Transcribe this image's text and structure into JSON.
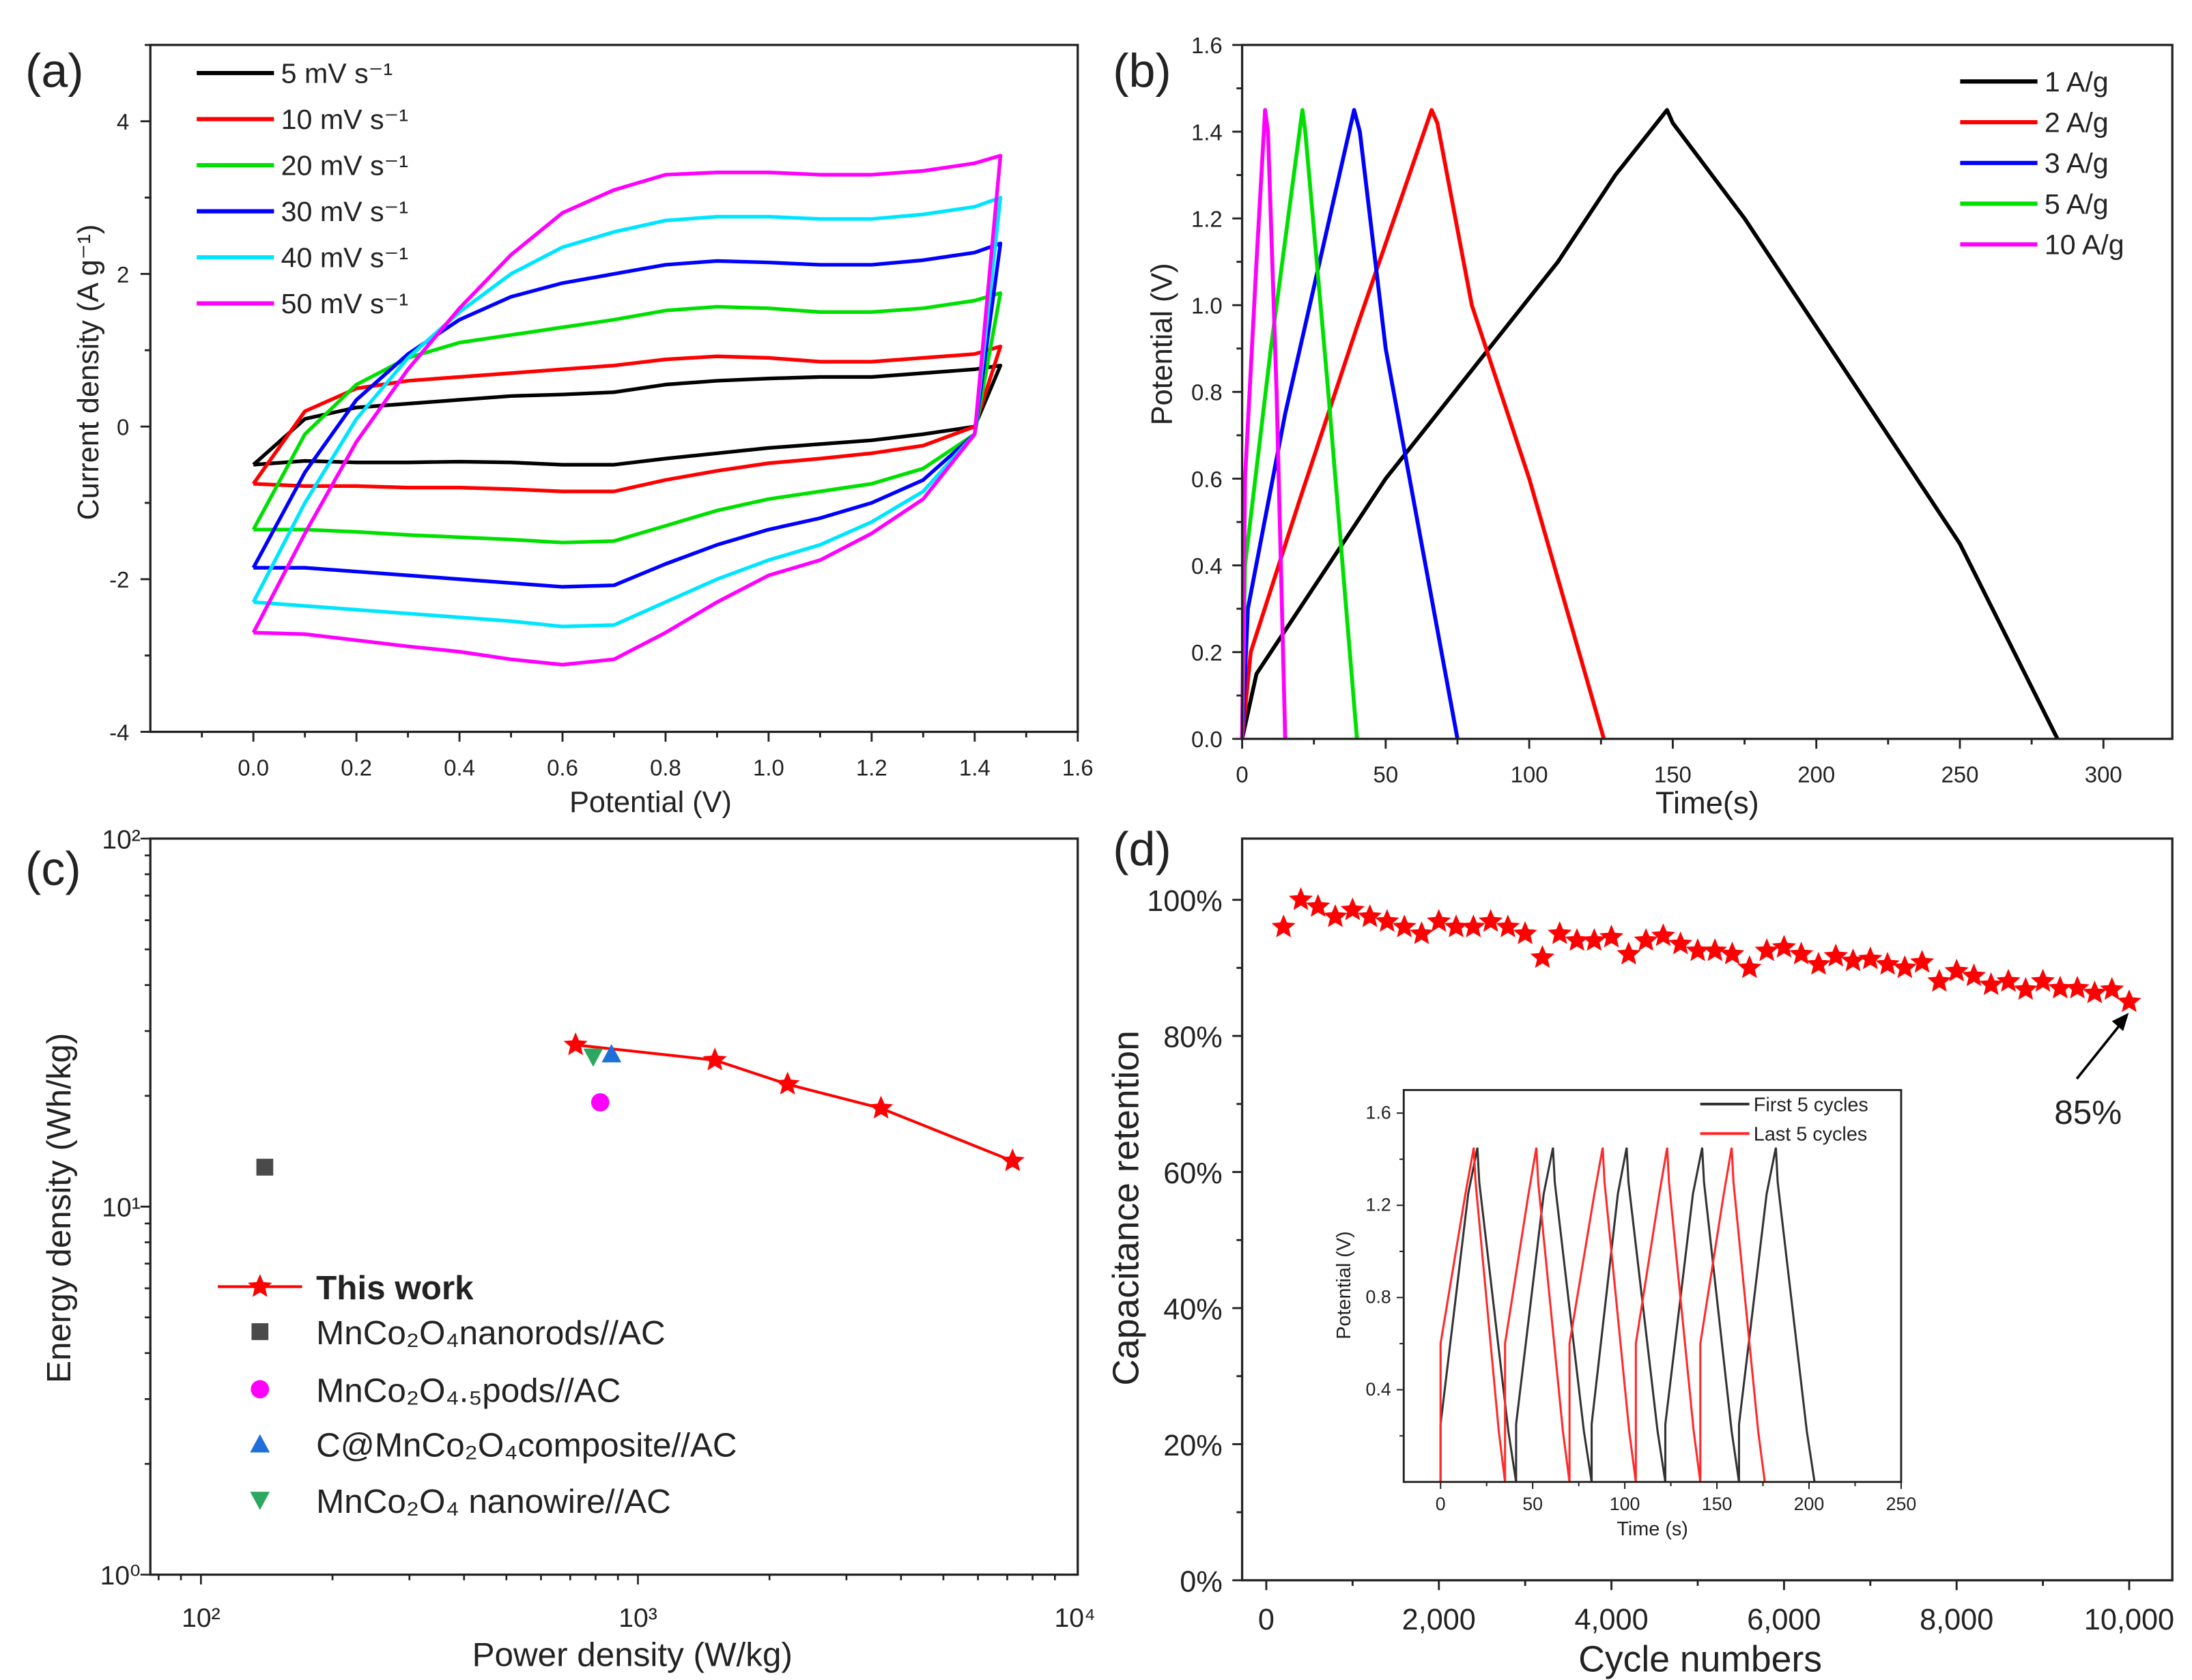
{
  "chart_data": [
    {
      "panel": "(a)",
      "type": "line",
      "xlabel": "Potential (V)",
      "ylabel": "Current density (A g⁻¹)",
      "xlim": [
        -0.2,
        1.6
      ],
      "ylim": [
        -4,
        5
      ],
      "xticks": [
        "0.0",
        "0.2",
        "0.4",
        "0.6",
        "0.8",
        "1.0",
        "1.2",
        "1.4",
        "1.6"
      ],
      "yticks": [
        "-4",
        "-2",
        "0",
        "2",
        "4"
      ],
      "x": [
        0,
        0.1,
        0.2,
        0.3,
        0.4,
        0.5,
        0.6,
        0.7,
        0.8,
        0.9,
        1.0,
        1.1,
        1.2,
        1.3,
        1.4,
        1.45
      ],
      "series": [
        {
          "name": "5 mV s⁻¹",
          "color": "#000000",
          "upper": [
            -0.5,
            0.1,
            0.25,
            0.3,
            0.35,
            0.4,
            0.42,
            0.45,
            0.55,
            0.6,
            0.63,
            0.65,
            0.65,
            0.7,
            0.75,
            0.8
          ],
          "lower": [
            -0.5,
            -0.45,
            -0.47,
            -0.47,
            -0.46,
            -0.47,
            -0.5,
            -0.5,
            -0.42,
            -0.35,
            -0.28,
            -0.23,
            -0.18,
            -0.1,
            0.0,
            0.8
          ]
        },
        {
          "name": "10 mV s⁻¹",
          "color": "#ff0000",
          "upper": [
            -0.75,
            0.2,
            0.5,
            0.6,
            0.65,
            0.7,
            0.75,
            0.8,
            0.88,
            0.92,
            0.9,
            0.85,
            0.85,
            0.9,
            0.95,
            1.05
          ],
          "lower": [
            -0.75,
            -0.78,
            -0.78,
            -0.8,
            -0.8,
            -0.82,
            -0.85,
            -0.85,
            -0.7,
            -0.58,
            -0.48,
            -0.42,
            -0.35,
            -0.25,
            0.0,
            1.05
          ]
        },
        {
          "name": "20 mV s⁻¹",
          "color": "#00e000",
          "upper": [
            -1.35,
            -0.1,
            0.55,
            0.9,
            1.1,
            1.2,
            1.3,
            1.4,
            1.52,
            1.57,
            1.55,
            1.5,
            1.5,
            1.55,
            1.65,
            1.75
          ],
          "lower": [
            -1.35,
            -1.35,
            -1.38,
            -1.42,
            -1.45,
            -1.48,
            -1.52,
            -1.5,
            -1.3,
            -1.1,
            -0.95,
            -0.85,
            -0.75,
            -0.55,
            -0.1,
            1.75
          ]
        },
        {
          "name": "30 mV s⁻¹",
          "color": "#0000ff",
          "upper": [
            -1.85,
            -0.6,
            0.35,
            0.95,
            1.4,
            1.7,
            1.88,
            2.0,
            2.12,
            2.17,
            2.15,
            2.12,
            2.12,
            2.18,
            2.28,
            2.4
          ],
          "lower": [
            -1.85,
            -1.85,
            -1.9,
            -1.95,
            -2.0,
            -2.05,
            -2.1,
            -2.08,
            -1.8,
            -1.55,
            -1.35,
            -1.2,
            -1.0,
            -0.7,
            -0.1,
            2.4
          ]
        },
        {
          "name": "40 mV s⁻¹",
          "color": "#00e5ff",
          "upper": [
            -2.3,
            -1.0,
            0.1,
            0.9,
            1.5,
            2.0,
            2.35,
            2.55,
            2.7,
            2.75,
            2.75,
            2.72,
            2.72,
            2.78,
            2.88,
            3.0
          ],
          "lower": [
            -2.3,
            -2.35,
            -2.4,
            -2.45,
            -2.5,
            -2.55,
            -2.62,
            -2.6,
            -2.3,
            -2.0,
            -1.75,
            -1.55,
            -1.25,
            -0.85,
            -0.1,
            3.0
          ]
        },
        {
          "name": "50 mV s⁻¹",
          "color": "#ff00ff",
          "upper": [
            -2.7,
            -1.4,
            -0.2,
            0.75,
            1.55,
            2.25,
            2.8,
            3.1,
            3.3,
            3.33,
            3.33,
            3.3,
            3.3,
            3.35,
            3.45,
            3.55
          ],
          "lower": [
            -2.7,
            -2.72,
            -2.8,
            -2.88,
            -2.95,
            -3.05,
            -3.12,
            -3.05,
            -2.7,
            -2.3,
            -1.95,
            -1.75,
            -1.4,
            -0.95,
            -0.1,
            3.55
          ]
        }
      ]
    },
    {
      "panel": "(b)",
      "type": "line",
      "xlabel": "Time(s)",
      "ylabel": "Potential (V)",
      "xlim": [
        0,
        324
      ],
      "ylim": [
        0,
        1.6
      ],
      "xticks": [
        "0",
        "50",
        "100",
        "150",
        "200",
        "250",
        "300"
      ],
      "yticks": [
        "0.0",
        "0.2",
        "0.4",
        "0.6",
        "0.8",
        "1.0",
        "1.2",
        "1.4",
        "1.6"
      ],
      "series": [
        {
          "name": "1 A/g",
          "color": "#000000",
          "points": [
            [
              0,
              0
            ],
            [
              5,
              0.15
            ],
            [
              20,
              0.3
            ],
            [
              50,
              0.6
            ],
            [
              80,
              0.85
            ],
            [
              110,
              1.1
            ],
            [
              130,
              1.3
            ],
            [
              148,
              1.45
            ],
            [
              150,
              1.42
            ],
            [
              175,
              1.2
            ],
            [
              200,
              0.95
            ],
            [
              230,
              0.65
            ],
            [
              250,
              0.45
            ],
            [
              284,
              0
            ]
          ]
        },
        {
          "name": "2 A/g",
          "color": "#ff0000",
          "points": [
            [
              0,
              0
            ],
            [
              3,
              0.2
            ],
            [
              20,
              0.55
            ],
            [
              40,
              0.95
            ],
            [
              66,
              1.45
            ],
            [
              68,
              1.42
            ],
            [
              80,
              1.0
            ],
            [
              100,
              0.6
            ],
            [
              126,
              0
            ]
          ]
        },
        {
          "name": "3 A/g",
          "color": "#0000ff",
          "points": [
            [
              0,
              0
            ],
            [
              2,
              0.3
            ],
            [
              15,
              0.75
            ],
            [
              39,
              1.45
            ],
            [
              41,
              1.4
            ],
            [
              50,
              0.9
            ],
            [
              75,
              0
            ]
          ]
        },
        {
          "name": "5 A/g",
          "color": "#00e000",
          "points": [
            [
              0,
              0
            ],
            [
              1,
              0.4
            ],
            [
              10,
              0.9
            ],
            [
              21,
              1.45
            ],
            [
              22,
              1.4
            ],
            [
              30,
              0.8
            ],
            [
              40,
              0
            ]
          ]
        },
        {
          "name": "10 A/g",
          "color": "#ff00ff",
          "points": [
            [
              0,
              0
            ],
            [
              1,
              0.6
            ],
            [
              5,
              1.1
            ],
            [
              8,
              1.45
            ],
            [
              9,
              1.4
            ],
            [
              12,
              0.8
            ],
            [
              15,
              0
            ]
          ]
        }
      ]
    },
    {
      "panel": "(c)",
      "type": "scatter",
      "xlabel": "Power density (W/kg)",
      "ylabel": "Energy density (Wh/kg)",
      "xscale": "log",
      "yscale": "log",
      "xlim": [
        76.6,
        10000
      ],
      "ylim": [
        1,
        100
      ],
      "xticks": [
        {
          "v": 100,
          "label": "10²"
        },
        {
          "v": 1000,
          "label": "10³"
        },
        {
          "v": 10000,
          "label": "10⁴"
        }
      ],
      "yticks": [
        {
          "v": 1,
          "label": "10⁰"
        },
        {
          "v": 10,
          "label": "10¹"
        },
        {
          "v": 100,
          "label": "10²"
        }
      ],
      "series": [
        {
          "name": "This work",
          "color": "#ff0000",
          "marker": "star",
          "line": true,
          "points": [
            [
              720,
              27.5
            ],
            [
              1500,
              25
            ],
            [
              2200,
              21.5
            ],
            [
              3600,
              18.5
            ],
            [
              7200,
              13.3
            ]
          ]
        },
        {
          "name": "MnCo₂O₄nanorods//AC",
          "color": "#4a4a4a",
          "marker": "square",
          "points": [
            [
              140,
              12.8
            ]
          ]
        },
        {
          "name": "MnCo₂O₄.₅pods//AC",
          "color": "#ff00ff",
          "marker": "circle",
          "points": [
            [
              820,
              19.2
            ]
          ]
        },
        {
          "name": "C@MnCo₂O₄composite//AC",
          "color": "#1e6fd9",
          "marker": "triangle-up",
          "points": [
            [
              870,
              26
            ]
          ]
        },
        {
          "name": "MnCo₂O₄ nanowire//AC",
          "color": "#2aa860",
          "marker": "triangle-down",
          "points": [
            [
              790,
              25.5
            ]
          ]
        }
      ]
    },
    {
      "panel": "(d)",
      "type": "scatter",
      "xlabel": "Cycle numbers",
      "ylabel": "Capacitance retention",
      "xlim": [
        -280,
        10500
      ],
      "ylim": [
        0,
        109
      ],
      "xticks": [
        {
          "v": 0,
          "label": "0"
        },
        {
          "v": 2000,
          "label": "2,000"
        },
        {
          "v": 4000,
          "label": "4,000"
        },
        {
          "v": 6000,
          "label": "6,000"
        },
        {
          "v": 8000,
          "label": "8,000"
        },
        {
          "v": 10000,
          "label": "10,000"
        }
      ],
      "yticks": [
        {
          "v": 0,
          "label": "0%"
        },
        {
          "v": 20,
          "label": "20%"
        },
        {
          "v": 40,
          "label": "40%"
        },
        {
          "v": 60,
          "label": "60%"
        },
        {
          "v": 80,
          "label": "80%"
        },
        {
          "v": 100,
          "label": "100%"
        }
      ],
      "color": "#ff0000",
      "cycles_step": 200,
      "retention": [
        96,
        100,
        99,
        97.5,
        98.5,
        97.5,
        96.8,
        96,
        95,
        96.8,
        96,
        96,
        96.8,
        96,
        95,
        91.5,
        95,
        94,
        94,
        94.5,
        92,
        94,
        94.7,
        93.5,
        92.5,
        92.5,
        92,
        90,
        92.5,
        93,
        92,
        90.5,
        91.7,
        91,
        91.3,
        90.5,
        90,
        90.8,
        88,
        89.5,
        88.8,
        87.5,
        88,
        86.8,
        88,
        87,
        87,
        86.3,
        86.8,
        85
      ],
      "annotation": "85%",
      "inset": {
        "type": "line",
        "xlabel": "Time (s)",
        "ylabel": "Potential (V)",
        "xlim": [
          -20,
          250
        ],
        "ylim": [
          0,
          1.7
        ],
        "xticks": [
          "0",
          "50",
          "100",
          "150",
          "200",
          "250"
        ],
        "yticks": [
          "0.4",
          "0.8",
          "1.2",
          "1.6"
        ],
        "vmax": 1.45,
        "series": [
          {
            "name": "First 5 cycles",
            "color": "#333333",
            "jump": 0.25,
            "starts": [
              0,
              41,
              82,
              122,
              162
            ],
            "peaks": [
              20,
              61,
              101,
              142,
              182
            ],
            "ends": [
              41,
              82,
              122,
              162,
              203
            ]
          },
          {
            "name": "Last 5 cycles",
            "color": "#ff2a2a",
            "jump": 0.6,
            "starts": [
              0,
              35,
              70,
              106,
              141
            ],
            "peaks": [
              18,
              52,
              88,
              123,
              158
            ],
            "ends": [
              35,
              70,
              106,
              141,
              176
            ]
          }
        ]
      }
    }
  ]
}
